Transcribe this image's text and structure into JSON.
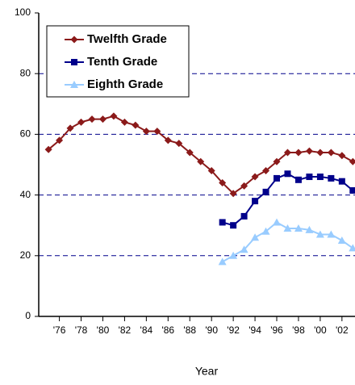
{
  "chart_data": {
    "type": "line",
    "x_label": "Year",
    "x": [
      1975,
      1976,
      1977,
      1978,
      1979,
      1980,
      1981,
      1982,
      1983,
      1984,
      1985,
      1986,
      1987,
      1988,
      1989,
      1990,
      1991,
      1992,
      1993,
      1994,
      1995,
      1996,
      1997,
      1998,
      1999,
      2000,
      2001,
      2002,
      2003
    ],
    "series": [
      {
        "name": "Twelfth Grade",
        "color": "#8b1a1a",
        "marker": "diamond",
        "values": [
          55,
          58,
          62,
          64,
          65,
          65,
          66,
          64,
          63,
          61,
          61,
          58,
          57,
          54,
          51,
          48,
          44,
          40.5,
          43,
          46,
          48,
          51,
          54,
          54,
          54.5,
          54,
          54,
          53,
          51
        ]
      },
      {
        "name": "Tenth Grade",
        "color": "#00008b",
        "marker": "square",
        "values": [
          null,
          null,
          null,
          null,
          null,
          null,
          null,
          null,
          null,
          null,
          null,
          null,
          null,
          null,
          null,
          null,
          31,
          30,
          33,
          38,
          41,
          45.5,
          47,
          45,
          46,
          46,
          45.5,
          44.5,
          41.5
        ]
      },
      {
        "name": "Eighth Grade",
        "color": "#99ccff",
        "marker": "triangle",
        "values": [
          null,
          null,
          null,
          null,
          null,
          null,
          null,
          null,
          null,
          null,
          null,
          null,
          null,
          null,
          null,
          null,
          18,
          20,
          22,
          26,
          28,
          31,
          29,
          29,
          28.5,
          27,
          27,
          25,
          22.5
        ]
      }
    ],
    "xlim": [
      1974.1,
      2003.2
    ],
    "xticks": [
      {
        "value": 1976,
        "label": "'76"
      },
      {
        "value": 1978,
        "label": "'78"
      },
      {
        "value": 1980,
        "label": "'80"
      },
      {
        "value": 1982,
        "label": "'82"
      },
      {
        "value": 1984,
        "label": "'84"
      },
      {
        "value": 1986,
        "label": "'86"
      },
      {
        "value": 1988,
        "label": "'88"
      },
      {
        "value": 1990,
        "label": "'90"
      },
      {
        "value": 1992,
        "label": "'92"
      },
      {
        "value": 1994,
        "label": "'94"
      },
      {
        "value": 1996,
        "label": "'96"
      },
      {
        "value": 1998,
        "label": "'98"
      },
      {
        "value": 2000,
        "label": "'00"
      },
      {
        "value": 2002,
        "label": "'02"
      }
    ],
    "ylim": [
      0,
      100
    ],
    "yticks": [
      0,
      20,
      40,
      60,
      80,
      100
    ],
    "grid": true,
    "legend": "upper left"
  }
}
